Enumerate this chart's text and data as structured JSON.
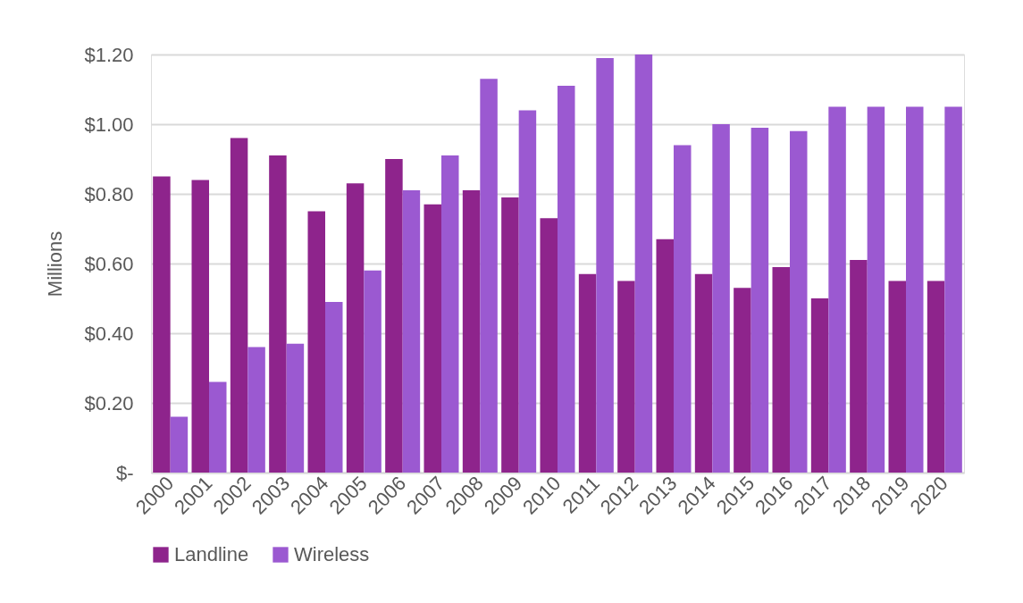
{
  "chart_data": {
    "type": "bar",
    "ylabel": "Millions",
    "categories": [
      "2000",
      "2001",
      "2002",
      "2003",
      "2004",
      "2005",
      "2006",
      "2007",
      "2008",
      "2009",
      "2010",
      "2011",
      "2012",
      "2013",
      "2014",
      "2015",
      "2016",
      "2017",
      "2018",
      "2019",
      "2020"
    ],
    "series": [
      {
        "name": "Landline",
        "color": "#8e248c",
        "values": [
          0.85,
          0.84,
          0.96,
          0.91,
          0.75,
          0.83,
          0.9,
          0.77,
          0.81,
          0.79,
          0.73,
          0.57,
          0.55,
          0.67,
          0.57,
          0.53,
          0.59,
          0.5,
          0.61,
          0.55,
          0.55
        ]
      },
      {
        "name": "Wireless",
        "color": "#9b59d1",
        "values": [
          0.16,
          0.26,
          0.36,
          0.37,
          0.49,
          0.58,
          0.81,
          0.91,
          1.13,
          1.04,
          1.11,
          1.19,
          1.2,
          0.94,
          1.0,
          0.99,
          0.98,
          1.05,
          1.05,
          1.05,
          1.05
        ]
      }
    ],
    "ylim": [
      0,
      1.2
    ],
    "yticks": [
      {
        "value": 0,
        "label": "$-"
      },
      {
        "value": 0.2,
        "label": "$0.20"
      },
      {
        "value": 0.4,
        "label": "$0.40"
      },
      {
        "value": 0.6,
        "label": "$0.60"
      },
      {
        "value": 0.8,
        "label": "$0.80"
      },
      {
        "value": 1.0,
        "label": "$1.00"
      },
      {
        "value": 1.2,
        "label": "$1.20"
      }
    ],
    "grid": "y",
    "legend": "bottom"
  }
}
